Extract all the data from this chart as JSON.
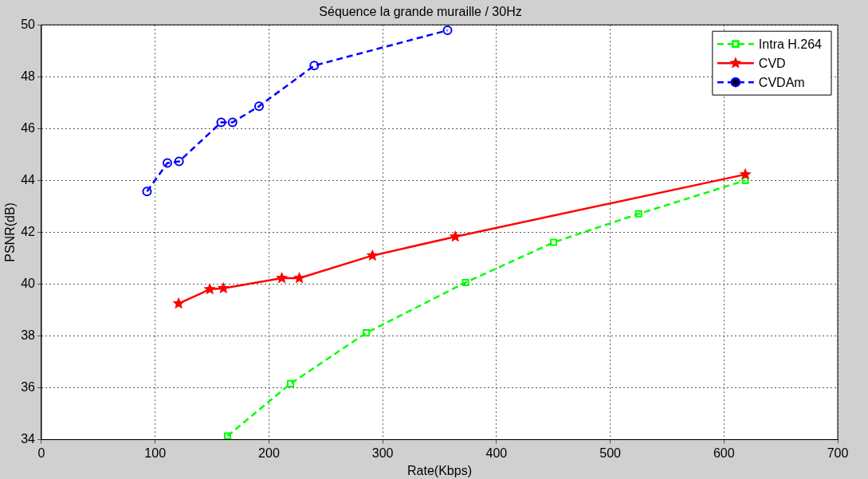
{
  "chart_data": {
    "type": "line",
    "title": "Séquence la grande muraille / 30Hz",
    "xlabel": "Rate(Kbps)",
    "ylabel": "PSNR(dB)",
    "xlim": [
      0,
      700
    ],
    "xticks": [
      0,
      100,
      200,
      300,
      400,
      500,
      600,
      700
    ],
    "ylim": [
      34,
      50
    ],
    "yticks": [
      34,
      36,
      38,
      40,
      42,
      44,
      46,
      48,
      50
    ],
    "grid": true,
    "legend": "top right",
    "series": [
      {
        "name": "Intra H.264",
        "color": "#00ff00",
        "marker": "square",
        "line_style": "dashed",
        "x": [
          163.6,
          219,
          285.6,
          372.8,
          450.2,
          525,
          618.8
        ],
        "values": [
          34.14,
          36.16,
          38.12,
          40.06,
          41.61,
          42.71,
          44.0
        ]
      },
      {
        "name": "CVD",
        "color": "#ff0000",
        "marker": "star",
        "line_style": "solid",
        "x": [
          120.6,
          148,
          160,
          211.3,
          226.7,
          291,
          363.8,
          618.8
        ],
        "values": [
          39.25,
          39.8,
          39.84,
          40.23,
          40.23,
          41.1,
          41.83,
          44.23
        ]
      },
      {
        "name": "CVDAm",
        "color": "#0000ff",
        "marker": "circle",
        "line_style": "dashed",
        "x": [
          92.8,
          110.7,
          121,
          158,
          168,
          191.3,
          239.8,
          357
        ],
        "values": [
          43.57,
          44.67,
          44.73,
          46.24,
          46.24,
          46.86,
          48.43,
          49.79
        ]
      }
    ]
  }
}
